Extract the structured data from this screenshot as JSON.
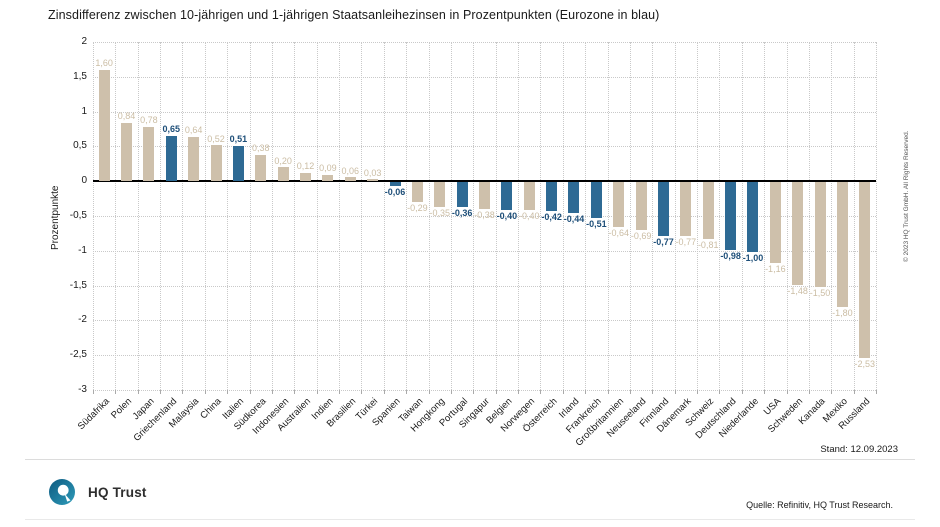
{
  "title": "Zinsdifferenz zwischen 10-jährigen und 1-jährigen Staatsanleihezinsen in Prozentpunkten (Eurozone in blau)",
  "chart_data": {
    "type": "bar",
    "title": "Zinsdifferenz zwischen 10-jährigen und 1-jährigen Staatsanleihezinsen in Prozentpunkten (Eurozone in blau)",
    "xlabel": "",
    "ylabel": "Prozentpunkte",
    "ylim": [
      -3,
      2
    ],
    "grid": "dotted",
    "legend": "none",
    "yticks": [
      2,
      1.5,
      1,
      0.5,
      0,
      -0.5,
      -1,
      -1.5,
      -2,
      -2.5,
      -3
    ],
    "ytick_labels": [
      "2",
      "1,5",
      "1",
      "0,5",
      "0",
      "-0,5",
      "-1",
      "-1,5",
      "-2",
      "-2,5",
      "-3"
    ],
    "colors": {
      "eurozone": "#2e6a94",
      "other": "#cec0ab",
      "eurozone_label": "#1d4e78",
      "other_label": "#cbbda4"
    },
    "bars": [
      {
        "label": "Südafrika",
        "value": 1.6,
        "display": "1,60",
        "eurozone": false
      },
      {
        "label": "Polen",
        "value": 0.84,
        "display": "0,84",
        "eurozone": false
      },
      {
        "label": "Japan",
        "value": 0.78,
        "display": "0,78",
        "eurozone": false
      },
      {
        "label": "Griechenland",
        "value": 0.65,
        "display": "0,65",
        "eurozone": true
      },
      {
        "label": "Malaysia",
        "value": 0.64,
        "display": "0,64",
        "eurozone": false
      },
      {
        "label": "China",
        "value": 0.52,
        "display": "0,52",
        "eurozone": false
      },
      {
        "label": "Italien",
        "value": 0.51,
        "display": "0,51",
        "eurozone": true
      },
      {
        "label": "Südkorea",
        "value": 0.38,
        "display": "0,38",
        "eurozone": false
      },
      {
        "label": "Indonesien",
        "value": 0.2,
        "display": "0,20",
        "eurozone": false
      },
      {
        "label": "Australien",
        "value": 0.12,
        "display": "0,12",
        "eurozone": false
      },
      {
        "label": "Indien",
        "value": 0.09,
        "display": "0,09",
        "eurozone": false
      },
      {
        "label": "Brasilien",
        "value": 0.06,
        "display": "0,06",
        "eurozone": false
      },
      {
        "label": "Türkei",
        "value": 0.03,
        "display": "0,03",
        "eurozone": false
      },
      {
        "label": "Spanien",
        "value": -0.06,
        "display": "-0,06",
        "eurozone": true
      },
      {
        "label": "Taiwan",
        "value": -0.29,
        "display": "-0,29",
        "eurozone": false
      },
      {
        "label": "Hongkong",
        "value": -0.35,
        "display": "-0,35",
        "eurozone": false
      },
      {
        "label": "Portugal",
        "value": -0.36,
        "display": "-0,36",
        "eurozone": true
      },
      {
        "label": "Singapur",
        "value": -0.38,
        "display": "-0,38",
        "eurozone": false
      },
      {
        "label": "Belgien",
        "value": -0.4,
        "display": "-0,40",
        "eurozone": true
      },
      {
        "label": "Norwegen",
        "value": -0.4,
        "display": "-0,40",
        "eurozone": false
      },
      {
        "label": "Österreich",
        "value": -0.42,
        "display": "-0,42",
        "eurozone": true
      },
      {
        "label": "Irland",
        "value": -0.44,
        "display": "-0,44",
        "eurozone": true
      },
      {
        "label": "Frankreich",
        "value": -0.51,
        "display": "-0,51",
        "eurozone": true
      },
      {
        "label": "Großbritannien",
        "value": -0.64,
        "display": "-0,64",
        "eurozone": false
      },
      {
        "label": "Neuseeland",
        "value": -0.69,
        "display": "-0,69",
        "eurozone": false
      },
      {
        "label": "Finnland",
        "value": -0.77,
        "display": "-0,77",
        "eurozone": true
      },
      {
        "label": "Dänemark",
        "value": -0.77,
        "display": "-0,77",
        "eurozone": false
      },
      {
        "label": "Schweiz",
        "value": -0.81,
        "display": "-0,81",
        "eurozone": false
      },
      {
        "label": "Deutschland",
        "value": -0.98,
        "display": "-0,98",
        "eurozone": true
      },
      {
        "label": "Niederlande",
        "value": -1.0,
        "display": "-1,00",
        "eurozone": true
      },
      {
        "label": "USA",
        "value": -1.16,
        "display": "-1,16",
        "eurozone": false
      },
      {
        "label": "Schweden",
        "value": -1.48,
        "display": "-1,48",
        "eurozone": false
      },
      {
        "label": "Kanada",
        "value": -1.5,
        "display": "-1,50",
        "eurozone": false
      },
      {
        "label": "Mexiko",
        "value": -1.8,
        "display": "-1,80",
        "eurozone": false
      },
      {
        "label": "Russland",
        "value": -2.53,
        "display": "-2,53",
        "eurozone": false
      }
    ]
  },
  "annotations": {
    "stand": "Stand: 12.09.2023",
    "copyright": "© 2023 HQ Trust GmbH. All Rights Reserved."
  },
  "footer": {
    "brand": "HQ Trust",
    "source": "Quelle: Refinitiv, HQ Trust Research."
  }
}
